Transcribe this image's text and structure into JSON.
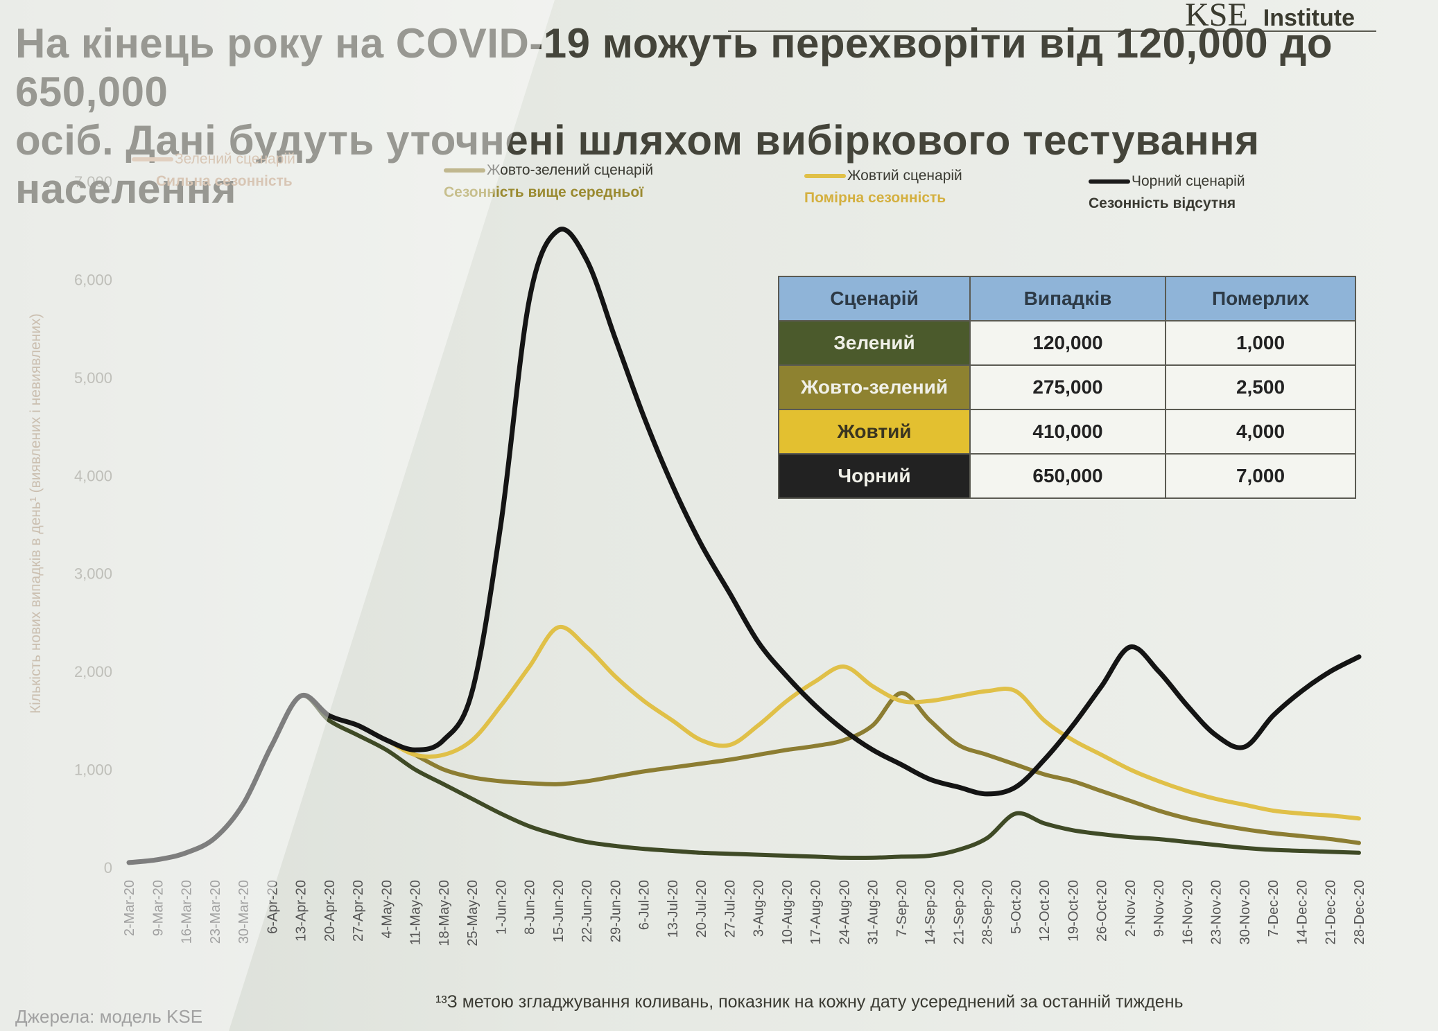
{
  "header": {
    "logo_text": "KSE",
    "logo_suffix": "Institute",
    "title_line1": "На кінець року на COVID-19 можуть перехворіти від 120,000 до 650,000",
    "title_line2": "осіб. Дані будуть уточнені шляхом вибіркового тестування населення"
  },
  "legend": [
    {
      "label": "Зелений сценарій",
      "sub": "Сильна сезонність",
      "color": "#c8a88a"
    },
    {
      "label": "Жовто-зелений сценарій",
      "sub": "Сезонність вище середньої",
      "color": "#8c7d32"
    },
    {
      "label": "Жовтий сценарій",
      "sub": "Помірна сезонність",
      "color": "#e0c048"
    },
    {
      "label": "Чорний сценарій",
      "sub": "Сезонність відсутня",
      "color": "#1a1a1a"
    }
  ],
  "table": {
    "headers": [
      "Сценарій",
      "Випадків",
      "Померлих"
    ],
    "rows": [
      {
        "scenario": "Зелений",
        "cases": "120,000",
        "deaths": "1,000",
        "color": "#4b5a2c"
      },
      {
        "scenario": "Жовто-зелений",
        "cases": "275,000",
        "deaths": "2,500",
        "color": "#8e8230"
      },
      {
        "scenario": "Жовтий",
        "cases": "410,000",
        "deaths": "4,000",
        "color": "#e3c030"
      },
      {
        "scenario": "Чорний",
        "cases": "650,000",
        "deaths": "7,000",
        "color": "#222222"
      }
    ]
  },
  "footer": {
    "source": "Джерела: модель KSE",
    "footnote": "¹³З метою згладжування коливань, показник на кожну дату усереднений за останній тиждень"
  },
  "chart_data": {
    "type": "line",
    "ylabel": "Кількість нових випадків в день¹ (виявлених і невиявлених)",
    "ylim": [
      0,
      7000
    ],
    "yticks": [
      "0",
      "1,000",
      "2,000",
      "3,000",
      "4,000",
      "5,000",
      "6,000",
      "7,000"
    ],
    "categories": [
      "2-Mar-20",
      "9-Mar-20",
      "16-Mar-20",
      "23-Mar-20",
      "30-Mar-20",
      "6-Apr-20",
      "13-Apr-20",
      "20-Apr-20",
      "27-Apr-20",
      "4-May-20",
      "11-May-20",
      "18-May-20",
      "25-May-20",
      "1-Jun-20",
      "8-Jun-20",
      "15-Jun-20",
      "22-Jun-20",
      "29-Jun-20",
      "6-Jul-20",
      "13-Jul-20",
      "20-Jul-20",
      "27-Jul-20",
      "3-Aug-20",
      "10-Aug-20",
      "17-Aug-20",
      "24-Aug-20",
      "31-Aug-20",
      "7-Sep-20",
      "14-Sep-20",
      "21-Sep-20",
      "28-Sep-20",
      "5-Oct-20",
      "12-Oct-20",
      "19-Oct-20",
      "26-Oct-20",
      "2-Nov-20",
      "9-Nov-20",
      "16-Nov-20",
      "23-Nov-20",
      "30-Nov-20",
      "7-Dec-20",
      "14-Dec-20",
      "21-Dec-20",
      "28-Dec-20"
    ],
    "series": [
      {
        "name": "Зелений сценарій",
        "color": "#3f4a26",
        "values": [
          50,
          80,
          150,
          300,
          650,
          1250,
          1750,
          1500,
          1350,
          1200,
          1000,
          850,
          700,
          550,
          420,
          330,
          260,
          220,
          190,
          170,
          150,
          140,
          130,
          120,
          110,
          100,
          100,
          110,
          120,
          180,
          300,
          550,
          450,
          380,
          340,
          310,
          290,
          260,
          230,
          200,
          180,
          170,
          160,
          150
        ]
      },
      {
        "name": "Жовто-зелений сценарій",
        "color": "#8c7d32",
        "values": [
          50,
          80,
          150,
          300,
          650,
          1250,
          1750,
          1550,
          1450,
          1300,
          1150,
          1000,
          920,
          880,
          860,
          850,
          880,
          930,
          980,
          1020,
          1060,
          1100,
          1150,
          1200,
          1240,
          1300,
          1450,
          1780,
          1500,
          1250,
          1150,
          1050,
          950,
          880,
          780,
          680,
          580,
          500,
          440,
          390,
          350,
          320,
          290,
          250
        ]
      },
      {
        "name": "Жовтий сценарій",
        "color": "#e0c048",
        "values": [
          50,
          80,
          150,
          300,
          650,
          1250,
          1750,
          1550,
          1450,
          1300,
          1150,
          1150,
          1300,
          1650,
          2050,
          2450,
          2250,
          1950,
          1700,
          1500,
          1300,
          1250,
          1450,
          1700,
          1900,
          2050,
          1850,
          1700,
          1700,
          1750,
          1800,
          1800,
          1500,
          1300,
          1150,
          1000,
          880,
          780,
          700,
          640,
          580,
          550,
          530,
          500
        ]
      },
      {
        "name": "Чорний сценарій",
        "color": "#141414",
        "values": [
          50,
          80,
          150,
          300,
          650,
          1250,
          1750,
          1550,
          1450,
          1300,
          1200,
          1300,
          1800,
          3500,
          5800,
          6500,
          6200,
          5400,
          4600,
          3900,
          3300,
          2800,
          2300,
          1950,
          1650,
          1400,
          1200,
          1050,
          900,
          820,
          750,
          820,
          1100,
          1450,
          1850,
          2250,
          2000,
          1650,
          1350,
          1230,
          1550,
          1800,
          2000,
          2150
        ]
      }
    ]
  }
}
